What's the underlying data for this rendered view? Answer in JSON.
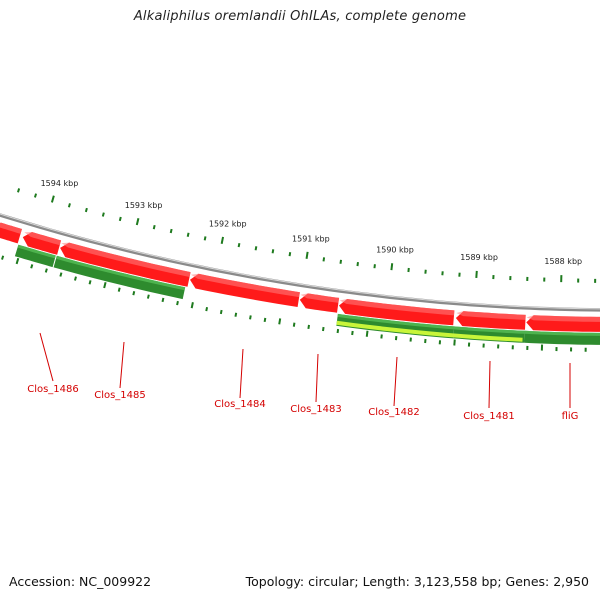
{
  "title": "Alkaliphilus oremlandii OhILAs, complete genome",
  "footer": {
    "accession": "Accession: NC_009922",
    "summary": "Topology: circular; Length: 3,123,558 bp; Genes: 2,950"
  },
  "colors": {
    "forward_gene": "#ff1a1a",
    "reverse_gene": "#2e8b2e",
    "highlight_gene": "#c8f53a",
    "backbone": "#8a8a8a",
    "tick": "#1e7a1e",
    "label": "#d40000"
  },
  "kbp_marks": [
    {
      "label": "1594 kbp"
    },
    {
      "label": "1593 kbp"
    },
    {
      "label": "1592 kbp"
    },
    {
      "label": "1591 kbp"
    },
    {
      "label": "1590 kbp"
    },
    {
      "label": "1589 kbp"
    },
    {
      "label": "1588 kbp"
    }
  ],
  "gene_labels": [
    {
      "label": "Clos_1486"
    },
    {
      "label": "Clos_1485"
    },
    {
      "label": "Clos_1484"
    },
    {
      "label": "Clos_1483"
    },
    {
      "label": "Clos_1482"
    },
    {
      "label": "Clos_1481"
    },
    {
      "label": "fliG"
    }
  ]
}
